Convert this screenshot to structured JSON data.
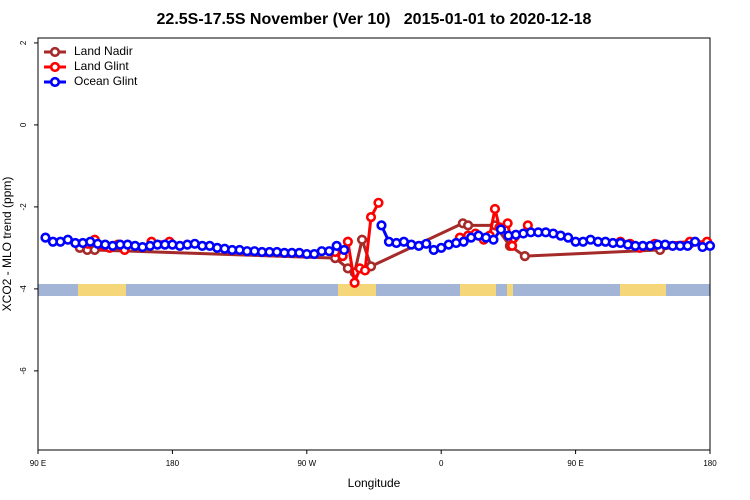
{
  "chart_data": {
    "type": "line",
    "title": "22.5S-17.5S November (Ver 10)   2015-01-01 to 2020-12-18",
    "x_label": "Longitude",
    "y_label": "XCO2 - MLO trend (ppm)",
    "xlim": [
      90,
      540
    ],
    "ylim": [
      -7.93,
      2.12
    ],
    "xticks": [
      {
        "value": 90,
        "label": "90 E"
      },
      180,
      {
        "value": 270,
        "label": "90 W"
      },
      {
        "value": 360,
        "label": "0"
      },
      {
        "value": 450,
        "label": "90 E"
      },
      {
        "value": 540,
        "label": "180"
      }
    ],
    "yticks": [
      2,
      0,
      -2,
      -4,
      -6
    ],
    "legend": "top-left",
    "series": [
      {
        "name": "Land Nadir",
        "color": "#a52a2a",
        "x": [
          118,
          123,
          128,
          289,
          297.5,
          302,
          307,
          313,
          374.5,
          378,
          396,
          406,
          416,
          506.5,
          526.5
        ],
        "values": [
          -3.0,
          -3.05,
          -3.05,
          -3.25,
          -3.5,
          -3.6,
          -2.8,
          -3.45,
          -2.4,
          -2.45,
          -2.45,
          -2.95,
          -3.2,
          -3.05,
          -2.9
        ]
      },
      {
        "name": "Land Glint",
        "color": "#ff0000",
        "x": [
          123.5,
          128,
          133.5,
          138,
          143.5,
          148,
          155,
          166,
          178,
          200,
          289,
          294,
          297.5,
          302,
          305.5,
          309,
          313,
          318,
          340,
          372.5,
          378,
          383,
          388.5,
          392.5,
          396,
          399,
          404.5,
          407.5,
          418,
          450,
          480,
          486.5,
          493,
          503,
          526.5,
          538
        ],
        "values": [
          -2.9,
          -2.8,
          -2.95,
          -3.0,
          -2.92,
          -3.05,
          null,
          -2.85,
          -2.85,
          null,
          -3.1,
          -3.2,
          -2.85,
          -3.85,
          -3.5,
          -3.55,
          -2.25,
          -1.9,
          null,
          -2.75,
          -2.7,
          -2.65,
          -2.8,
          -2.7,
          -2.05,
          -2.5,
          -2.4,
          -2.95,
          -2.45,
          null,
          -2.85,
          -2.9,
          -3.0,
          -2.9,
          -2.85,
          -2.85
        ]
      },
      {
        "name": "Ocean Glint",
        "color": "#0000ff",
        "x": [
          95,
          100,
          105,
          110,
          115,
          120,
          125,
          130,
          135,
          140,
          145,
          150,
          155,
          160,
          165,
          170,
          175,
          180,
          185,
          190,
          195,
          200,
          205,
          210,
          215,
          220,
          225,
          230,
          235,
          240,
          245,
          250,
          255,
          260,
          265,
          270,
          275,
          280,
          285,
          290,
          295,
          300,
          305,
          310,
          315,
          320,
          325,
          330,
          335,
          340,
          345,
          350,
          355,
          360,
          365,
          370,
          375,
          380,
          385,
          390,
          395,
          400,
          405,
          410,
          415,
          420,
          425,
          430,
          435,
          440,
          445,
          450,
          455,
          460,
          465,
          470,
          475,
          480,
          485,
          490,
          495,
          500,
          505,
          510,
          515,
          520,
          525,
          530,
          535,
          540
        ],
        "values": [
          -2.75,
          -2.85,
          -2.85,
          -2.8,
          -2.88,
          -2.88,
          -2.85,
          -2.9,
          -2.92,
          -2.95,
          -2.92,
          -2.92,
          -2.95,
          -2.98,
          -2.95,
          -2.92,
          -2.92,
          -2.92,
          -2.95,
          -2.92,
          -2.9,
          -2.95,
          -2.95,
          -3.0,
          -3.02,
          -3.05,
          -3.05,
          -3.08,
          -3.08,
          -3.1,
          -3.1,
          -3.1,
          -3.12,
          -3.12,
          -3.12,
          -3.15,
          -3.15,
          -3.08,
          -3.08,
          -2.95,
          -3.05,
          null,
          null,
          null,
          null,
          -2.45,
          -2.85,
          -2.88,
          -2.85,
          -2.92,
          -2.95,
          -2.9,
          -3.05,
          -3.0,
          -2.92,
          -2.88,
          -2.85,
          -2.75,
          -2.7,
          -2.75,
          -2.8,
          -2.55,
          -2.7,
          -2.68,
          -2.65,
          -2.62,
          -2.62,
          -2.62,
          -2.65,
          -2.7,
          -2.75,
          -2.85,
          -2.85,
          -2.8,
          -2.85,
          -2.85,
          -2.88,
          -2.88,
          -2.92,
          -2.95,
          -2.95,
          -2.95,
          -2.92,
          -2.92,
          -2.95,
          -2.95,
          -2.95,
          -2.85,
          -2.98,
          -2.95
        ]
      }
    ]
  }
}
